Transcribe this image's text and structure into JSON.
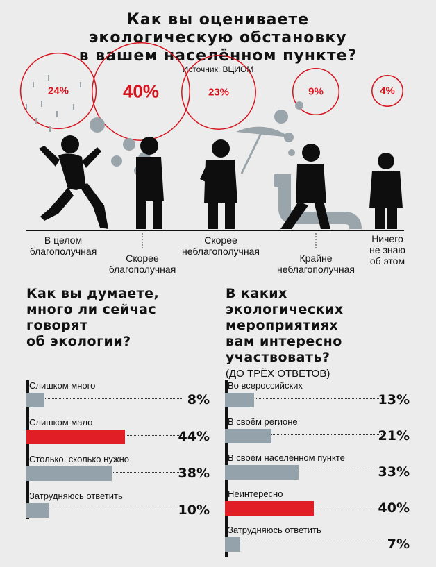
{
  "header": {
    "title_lines": [
      "Как вы оцениваете",
      "экологическую обстановку",
      "в вашем населённом пункте?"
    ],
    "source": "Источник: ВЦИОМ"
  },
  "colors": {
    "accent": "#d7141e",
    "bar": "#94a3ab",
    "highlight": "#e11e26"
  },
  "chart_data": [
    {
      "type": "bubble",
      "title": "Как вы оцениваете экологическую обстановку в вашем населённом пункте?",
      "categories": [
        "В целом благополучная",
        "Скорее благополучная",
        "Скорее неблагополучная",
        "Крайне неблагополучная",
        "Ничего не знаю об этом"
      ],
      "values": [
        24,
        40,
        23,
        9,
        4
      ],
      "labels": [
        "24%",
        "40%",
        "23%",
        "9%",
        "4%"
      ],
      "category_lines": [
        [
          "В целом",
          "благополучная"
        ],
        [
          "Скорее",
          "благополучная"
        ],
        [
          "Скорее",
          "неблагополучная"
        ],
        [
          "Крайне",
          "неблагополучная"
        ],
        [
          "Ничего",
          "не знаю",
          "об этом"
        ]
      ]
    },
    {
      "type": "bar",
      "orientation": "horizontal",
      "title_lines": [
        "Как вы думаете,",
        "много ли сейчас",
        "говорят",
        "об экологии?"
      ],
      "categories": [
        "Слишком много",
        "Слишком мало",
        "Столько, сколько нужно",
        "Затрудняюсь ответить"
      ],
      "values": [
        8,
        44,
        38,
        10
      ],
      "labels": [
        "8%",
        "44%",
        "38%",
        "10%"
      ],
      "highlight_index": 1
    },
    {
      "type": "bar",
      "orientation": "horizontal",
      "title_lines": [
        "В каких",
        "экологических",
        "мероприятиях",
        "вам интересно",
        "участвовать?"
      ],
      "note": "(ДО ТРЁХ ОТВЕТОВ)",
      "categories": [
        "Во всероссийских",
        "В своём регионе",
        "В своём населённом пункте",
        "Неинтересно",
        "Затрудняюсь ответить"
      ],
      "values": [
        13,
        21,
        33,
        40,
        7
      ],
      "labels": [
        "13%",
        "21%",
        "33%",
        "40%",
        "7%"
      ],
      "highlight_index": 3
    }
  ]
}
